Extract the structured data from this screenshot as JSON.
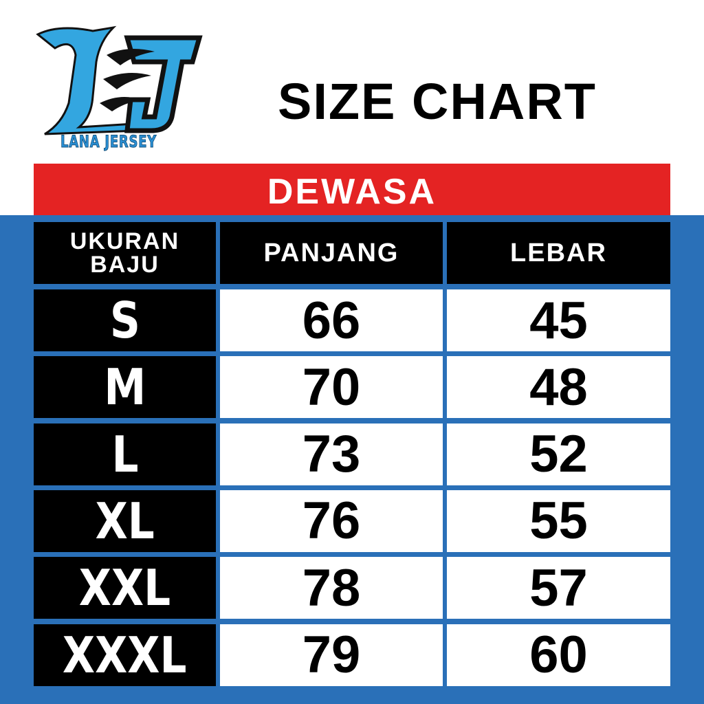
{
  "logo": {
    "text": "LANA JERSEY",
    "colors": {
      "primary": "#33a6e0",
      "outline": "#111111"
    }
  },
  "title": "SIZE CHART",
  "category": "DEWASA",
  "colors": {
    "band": "#e42323",
    "background": "#2a70b8",
    "header": "#000000"
  },
  "table": {
    "headers": [
      "UKURAN BAJU",
      "PANJANG",
      "LEBAR"
    ],
    "rows": [
      {
        "size": "S",
        "panjang": "66",
        "lebar": "45"
      },
      {
        "size": "M",
        "panjang": "70",
        "lebar": "48"
      },
      {
        "size": "L",
        "panjang": "73",
        "lebar": "52"
      },
      {
        "size": "XL",
        "panjang": "76",
        "lebar": "55"
      },
      {
        "size": "XXL",
        "panjang": "78",
        "lebar": "57"
      },
      {
        "size": "XXXL",
        "panjang": "79",
        "lebar": "60"
      }
    ]
  }
}
